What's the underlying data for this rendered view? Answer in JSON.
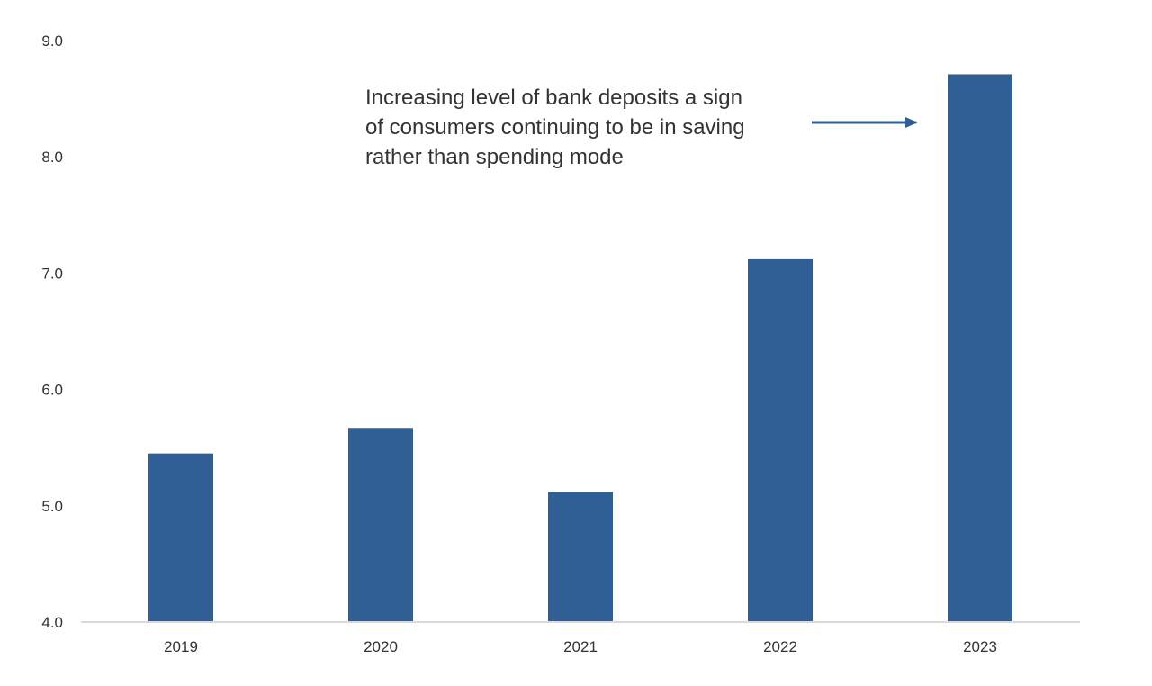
{
  "chart_data": {
    "type": "bar",
    "title": "",
    "xlabel": "",
    "ylabel": "",
    "categories": [
      "2019",
      "2020",
      "2021",
      "2022",
      "2023"
    ],
    "values": [
      5.45,
      5.67,
      5.12,
      7.12,
      8.71
    ],
    "ylim": [
      4.0,
      9.0
    ],
    "yticks": [
      "4.0",
      "5.0",
      "6.0",
      "7.0",
      "8.0",
      "9.0"
    ],
    "grid": false,
    "legend": "none",
    "bar_color": "#2f5f94",
    "axis_color": "#d9d9d9",
    "annotation": {
      "lines": [
        "Increasing level of bank deposits a sign",
        "of consumers continuing to be in saving",
        "rather than spending mode"
      ],
      "points_to": "2023"
    }
  }
}
